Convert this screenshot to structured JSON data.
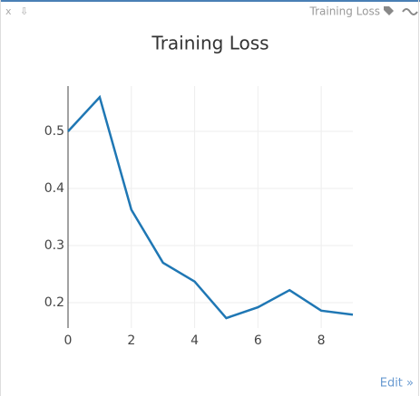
{
  "header": {
    "close": "x",
    "download": "⇩",
    "label": "Training Loss"
  },
  "chart_data": {
    "type": "line",
    "title": "Training Loss",
    "x": [
      0,
      1,
      2,
      3,
      4,
      5,
      6,
      7,
      8,
      9
    ],
    "series": [
      {
        "name": "Training Loss",
        "color": "#1f77b4",
        "values": [
          0.5,
          0.56,
          0.363,
          0.27,
          0.237,
          0.173,
          0.192,
          0.222,
          0.186,
          0.179
        ]
      }
    ],
    "xlim": [
      0,
      9
    ],
    "xticks": [
      0,
      2,
      4,
      6,
      8
    ],
    "ylim": [
      0.1556,
      0.5794
    ],
    "yticks": [
      0.2,
      0.3,
      0.4,
      0.5
    ],
    "grid": true
  },
  "footer": {
    "edit": "Edit »"
  }
}
